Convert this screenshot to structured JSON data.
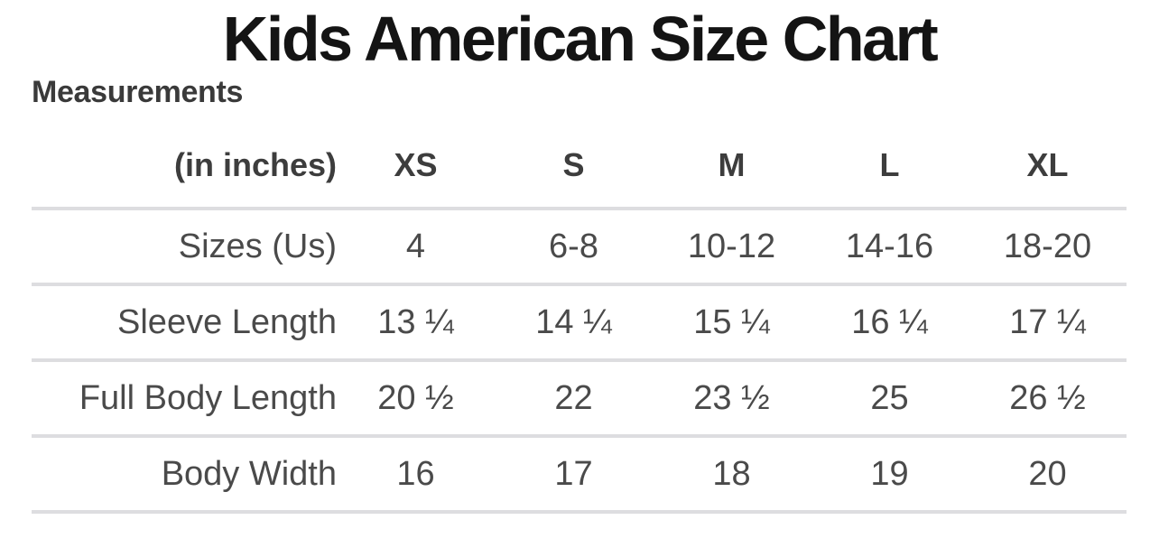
{
  "page": {
    "title": "Kids American Size Chart",
    "subtitle": "Measurements"
  },
  "colors": {
    "title_text": "#141414",
    "subtitle_text": "#3a3a3a",
    "header_text": "#3d3d3d",
    "body_text": "#4a4a4a",
    "divider": "#dddde0",
    "background": "#ffffff"
  },
  "table": {
    "unit_label": "(in inches)",
    "columns": [
      "XS",
      "S",
      "M",
      "L",
      "XL"
    ],
    "rows": [
      {
        "label": "Sizes (Us)",
        "values": [
          "4",
          "6-8",
          "10-12",
          "14-16",
          "18-20"
        ]
      },
      {
        "label": "Sleeve Length",
        "values": [
          "13 ¼",
          "14 ¼",
          "15 ¼",
          "16 ¼",
          "17 ¼"
        ]
      },
      {
        "label": "Full Body Length",
        "values": [
          "20 ½",
          "22",
          "23 ½",
          "25",
          "26 ½"
        ]
      },
      {
        "label": "Body Width",
        "values": [
          "16",
          "17",
          "18",
          "19",
          "20"
        ]
      }
    ]
  }
}
